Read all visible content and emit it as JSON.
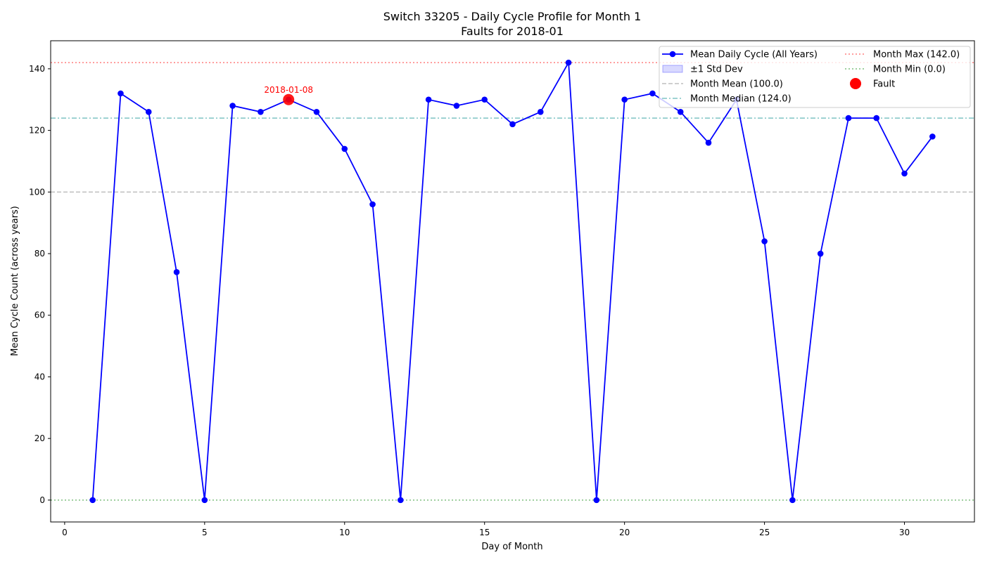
{
  "chart_data": {
    "type": "line",
    "title": "Switch 33205 - Daily Cycle Profile for Month 1",
    "subtitle": "Faults for 2018-01",
    "xlabel": "Day of Month",
    "ylabel": "Mean Cycle Count (across years)",
    "xlim": [
      -0.5,
      32.5
    ],
    "ylim": [
      -7.1,
      149.1
    ],
    "x_ticks": [
      0,
      5,
      10,
      15,
      20,
      25,
      30
    ],
    "y_ticks": [
      0,
      20,
      40,
      60,
      80,
      100,
      120,
      140
    ],
    "grid": false,
    "legend_position": "top-right",
    "series": [
      {
        "name": "Mean Daily Cycle (All Years)",
        "color": "#0000ff",
        "x": [
          1,
          2,
          3,
          4,
          5,
          6,
          7,
          8,
          9,
          10,
          11,
          12,
          13,
          14,
          15,
          16,
          17,
          18,
          19,
          20,
          21,
          22,
          23,
          24,
          25,
          26,
          27,
          28,
          29,
          30,
          31
        ],
        "values": [
          0,
          132,
          126,
          74,
          0,
          128,
          126,
          130,
          126,
          114,
          96,
          0,
          130,
          128,
          130,
          122,
          126,
          142,
          0,
          130,
          132,
          126,
          116,
          130,
          84,
          0,
          80,
          124,
          124,
          106,
          118
        ]
      }
    ],
    "std_band": {
      "name": "±1 Std Dev",
      "color": "#0000ff"
    },
    "reference_lines": [
      {
        "name": "Month Mean (100.0)",
        "value": 100.0,
        "color": "#808080",
        "style": "dashed"
      },
      {
        "name": "Month Median (124.0)",
        "value": 124.0,
        "color": "#008b8b",
        "style": "dashdot"
      },
      {
        "name": "Month Max (142.0)",
        "value": 142.0,
        "color": "#ff0000",
        "style": "dotted"
      },
      {
        "name": "Month Min (0.0)",
        "value": 0.0,
        "color": "#008000",
        "style": "dotted"
      }
    ],
    "faults": {
      "name": "Fault",
      "color": "#ff0000",
      "points": [
        {
          "x": 8,
          "y": 130,
          "label": "2018-01-08"
        }
      ]
    }
  }
}
